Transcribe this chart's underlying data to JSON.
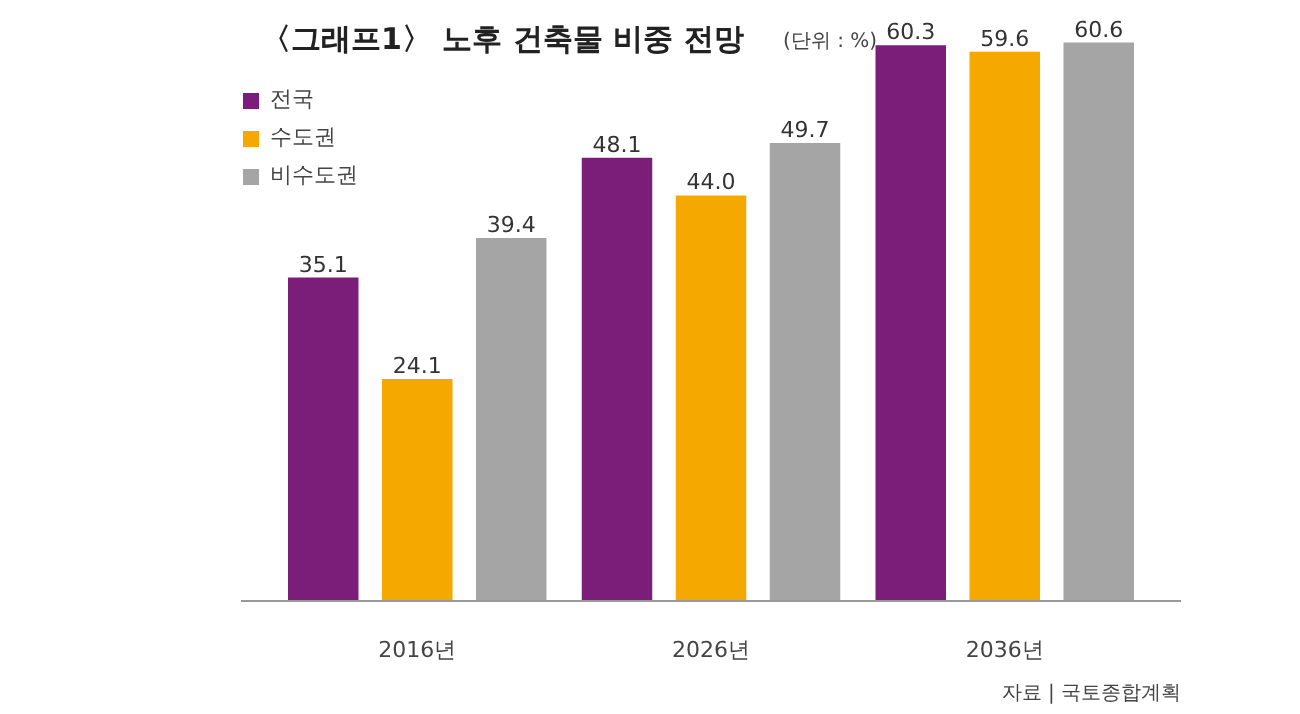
{
  "chart_data": {
    "type": "bar",
    "title": "〈그래프1〉 노후 건축물 비중 전망",
    "subtitle": "(단위 : %)",
    "categories": [
      "2016년",
      "2026년",
      "2036년"
    ],
    "series": [
      {
        "name": "전국",
        "color": "#7b1e7a",
        "values": [
          35.1,
          48.1,
          60.3
        ],
        "value_labels": [
          "35.1",
          "48.1",
          "60.3"
        ]
      },
      {
        "name": "수도권",
        "color": "#f5a800",
        "values": [
          24.1,
          44.0,
          59.6
        ],
        "value_labels": [
          "24.1",
          "44.0",
          "59.6"
        ]
      },
      {
        "name": "비수도권",
        "color": "#a5a5a5",
        "values": [
          39.4,
          49.7,
          60.6
        ],
        "value_labels": [
          "39.4",
          "49.7",
          "60.6"
        ]
      }
    ],
    "grid": false,
    "legend": "top left",
    "annotations": [
      "자료 | 국토종합계획"
    ]
  }
}
